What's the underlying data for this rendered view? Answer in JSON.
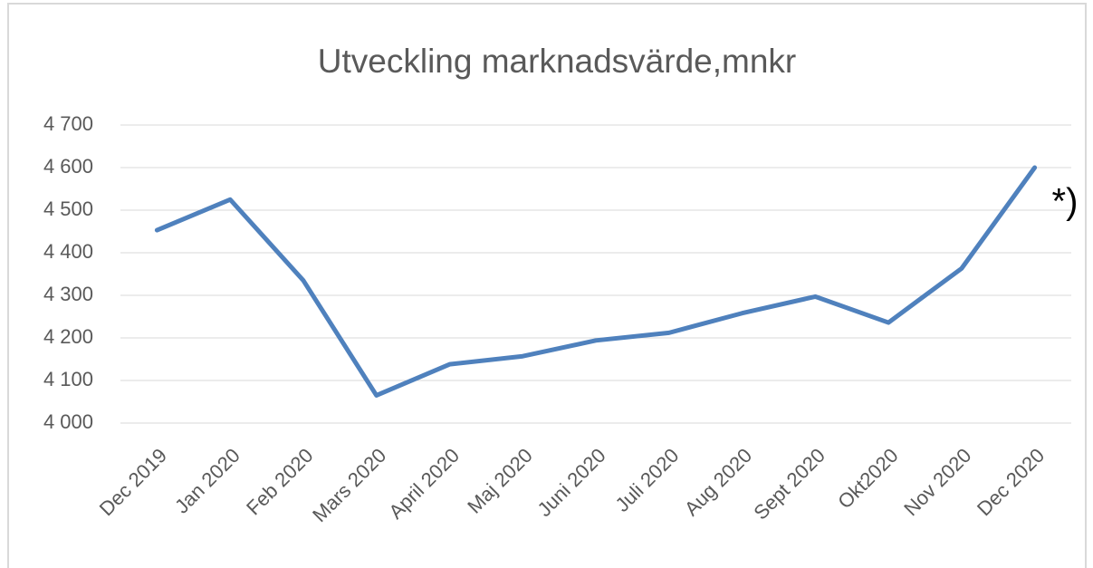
{
  "chart_data": {
    "type": "line",
    "title": "Utveckling marknadsvärde,mnkr",
    "categories": [
      "Dec 2019",
      "Jan 2020",
      "Feb 2020",
      "Mars 2020",
      "April 2020",
      "Maj 2020",
      "Juni 2020",
      "Juli 2020",
      "Aug 2020",
      "Sept 2020",
      "Okt2020",
      "Nov 2020",
      "Dec 2020"
    ],
    "series": [
      {
        "name": "Marknadsvärde",
        "color": "#4f81bd",
        "values": [
          4453,
          4525,
          4335,
          4065,
          4138,
          4157,
          4194,
          4212,
          4258,
          4297,
          4236,
          4363,
          4600
        ]
      }
    ],
    "ylim": [
      4000,
      4700
    ],
    "yticks": [
      {
        "value": 4000,
        "label": "4 000"
      },
      {
        "value": 4100,
        "label": "4 100"
      },
      {
        "value": 4200,
        "label": "4 200"
      },
      {
        "value": 4300,
        "label": "4 300"
      },
      {
        "value": 4400,
        "label": "4 400"
      },
      {
        "value": 4500,
        "label": "4 500"
      },
      {
        "value": 4600,
        "label": "4 600"
      },
      {
        "value": 4700,
        "label": "4 700"
      }
    ],
    "grid": true,
    "annotation": "*)"
  }
}
